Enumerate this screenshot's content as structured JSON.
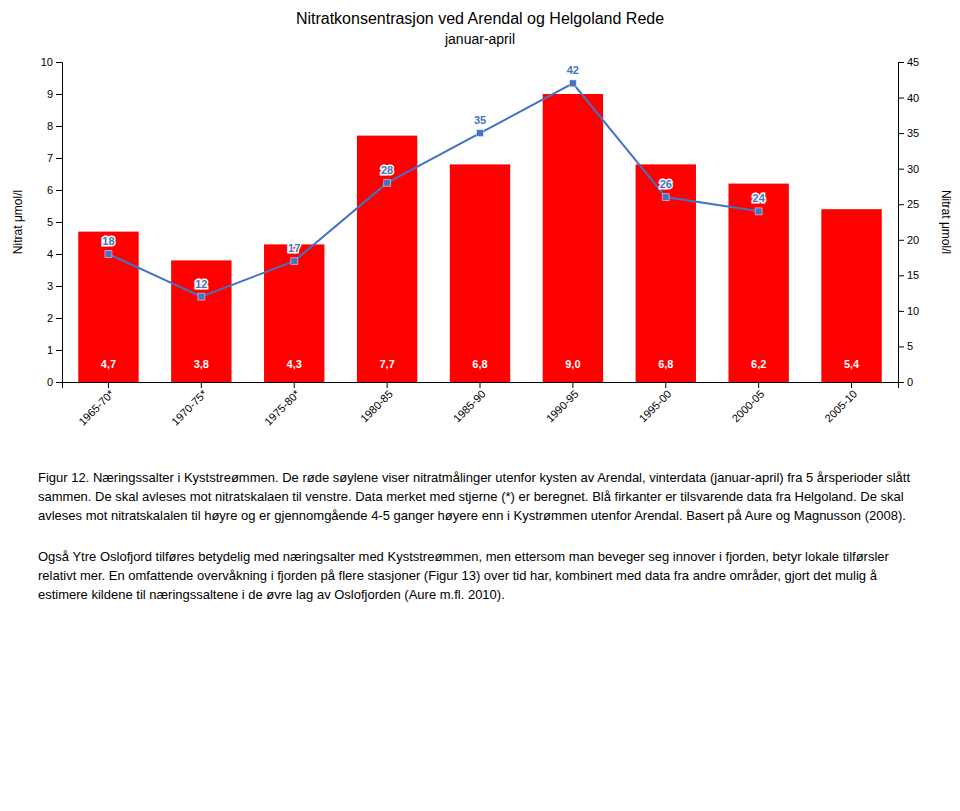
{
  "chart_data": {
    "type": "bar",
    "title": "Nitratkonsentrasjon ved Arendal og Helgoland Rede",
    "subtitle": "januar-april",
    "categories": [
      "1965-70*",
      "1970-75*",
      "1975-80*",
      "1980-85",
      "1985-90",
      "1990-95",
      "1995-00",
      "2000-05",
      "2005-10"
    ],
    "series": [
      {
        "type": "bar",
        "color": "#FF0000",
        "values": [
          4.7,
          3.8,
          4.3,
          7.7,
          6.8,
          9.0,
          6.8,
          6.2,
          5.4
        ],
        "value_labels": [
          "4,7",
          "3,8",
          "4,3",
          "7,7",
          "6,8",
          "9,0",
          "6,8",
          "6,2",
          "5,4"
        ],
        "data_labels": true
      },
      {
        "type": "line",
        "axis": "y2",
        "color": "#4472C4",
        "marker": "square",
        "values": [
          18,
          12,
          17,
          28,
          35,
          42,
          26,
          24,
          null
        ],
        "data_labels": true
      }
    ],
    "ylabel": "Nitrat μmol/l",
    "y2label": "Nitrat μmol/l",
    "ylim": [
      0,
      10
    ],
    "yticks": [
      0,
      1,
      2,
      3,
      4,
      5,
      6,
      7,
      8,
      9,
      10
    ],
    "y2lim": [
      0,
      45
    ],
    "y2ticks": [
      0,
      5,
      10,
      15,
      20,
      25,
      30,
      35,
      40,
      45
    ],
    "grid": false,
    "annotations": [
      "Figur 12. Næringssalter i Kyststreømmen. De røde søylene viser nitratmålinger utenfor kysten av Arendal, vinterdata (januar-april) fra 5 årsperioder slått sammen. De skal avleses mot nitratskalaen til venstre. Data merket med stjerne (*) er beregnet. Blå firkanter er tilsvarende data fra Helgoland. De skal avleses mot nitratskalalen til høyre og er gjennomgående 4-5 ganger høyere enn i Kystrømmen utenfor Arendal. Basert på Aure og Magnusson (2008).",
      "Også Ytre Oslofjord tilføres betydelig med næringsalter med Kyststreømmen, men ettersom man beveger seg innover i fjorden, betyr lokale tilførsler relativt mer. En omfattende overvåkning i fjorden på flere stasjoner (Figur 13) over tid har, kombinert med data fra andre områder, gjort det mulig å estimere kildene til næringssaltene i de øvre lag av Oslofjorden (Aure m.fl. 2010)."
    ]
  }
}
